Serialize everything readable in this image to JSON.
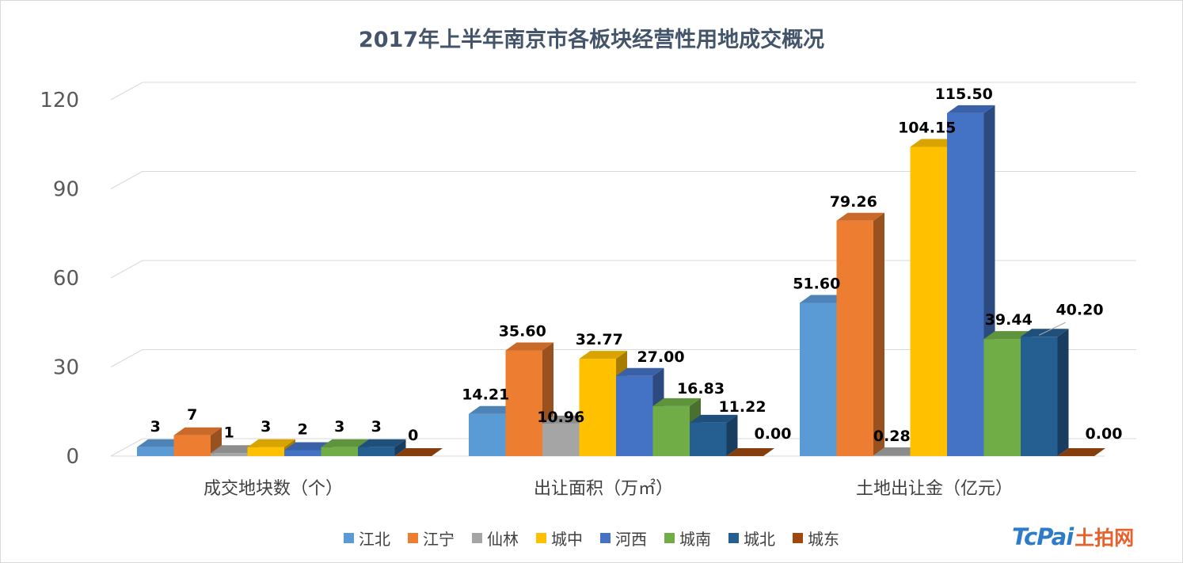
{
  "chart_data": {
    "type": "bar",
    "title": "2017年上半年南京市各板块经营性用地成交概况",
    "categories": [
      "成交地块数（个）",
      "出让面积（万㎡）",
      "土地出让金（亿元）"
    ],
    "series": [
      {
        "name": "江北",
        "color": "#5b9bd5",
        "values": [
          3,
          14.21,
          51.6
        ],
        "labels": [
          "3",
          "14.21",
          "51.60"
        ]
      },
      {
        "name": "江宁",
        "color": "#ed7d31",
        "values": [
          7,
          35.6,
          79.26
        ],
        "labels": [
          "7",
          "35.60",
          "79.26"
        ]
      },
      {
        "name": "仙林",
        "color": "#a5a5a5",
        "values": [
          1,
          10.96,
          0.28
        ],
        "labels": [
          "1",
          "10.96",
          "0.28"
        ]
      },
      {
        "name": "城中",
        "color": "#ffc000",
        "values": [
          3,
          32.77,
          104.15
        ],
        "labels": [
          "3",
          "32.77",
          "104.15"
        ]
      },
      {
        "name": "河西",
        "color": "#4472c4",
        "values": [
          2,
          27.0,
          115.5
        ],
        "labels": [
          "2",
          "27.00",
          "115.50"
        ]
      },
      {
        "name": "城南",
        "color": "#70ad47",
        "values": [
          3,
          16.83,
          39.44
        ],
        "labels": [
          "3",
          "16.83",
          "39.44"
        ]
      },
      {
        "name": "城北",
        "color": "#255e91",
        "values": [
          3,
          11.22,
          40.2
        ],
        "labels": [
          "3",
          "11.22",
          "40.20"
        ]
      },
      {
        "name": "城东",
        "color": "#9e480e",
        "values": [
          0,
          0.0,
          0.0
        ],
        "labels": [
          "0",
          "0.00",
          "0.00"
        ]
      }
    ],
    "yticks": [
      "0",
      "30",
      "60",
      "90",
      "120"
    ],
    "ylim": [
      0,
      120
    ],
    "grid": true,
    "legend": "bottom",
    "style": "3d-clustered-column"
  },
  "watermark": {
    "latin": "TcPai",
    "cn": "土拍网"
  }
}
